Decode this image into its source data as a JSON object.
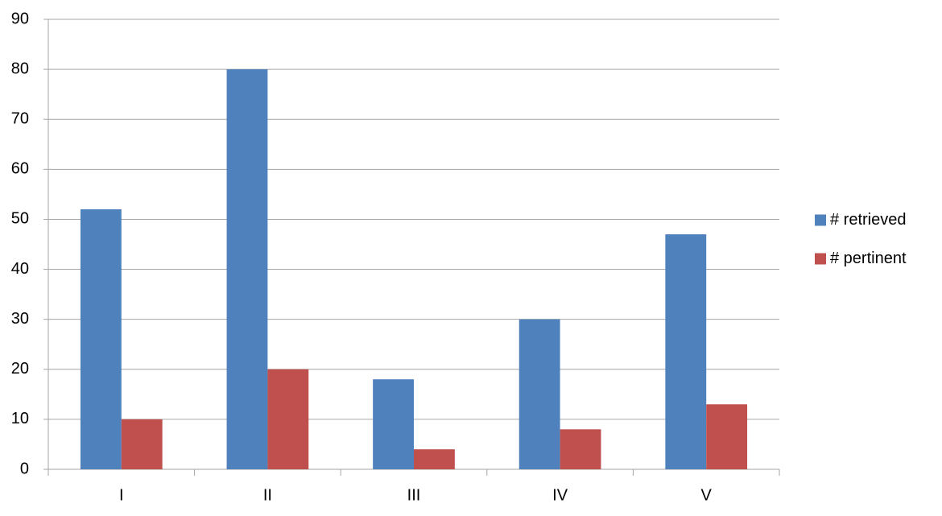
{
  "chart_data": {
    "type": "bar",
    "categories": [
      "I",
      "II",
      "III",
      "IV",
      "V"
    ],
    "series": [
      {
        "name": "# retrieved",
        "color": "#4f81bd",
        "values": [
          52,
          80,
          18,
          30,
          47
        ]
      },
      {
        "name": "# pertinent",
        "color": "#c0504d",
        "values": [
          10,
          20,
          4,
          8,
          13
        ]
      }
    ],
    "ylim": [
      0,
      90
    ],
    "yticks": [
      0,
      10,
      20,
      30,
      40,
      50,
      60,
      70,
      80,
      90
    ],
    "grid": true,
    "legend": "right"
  }
}
